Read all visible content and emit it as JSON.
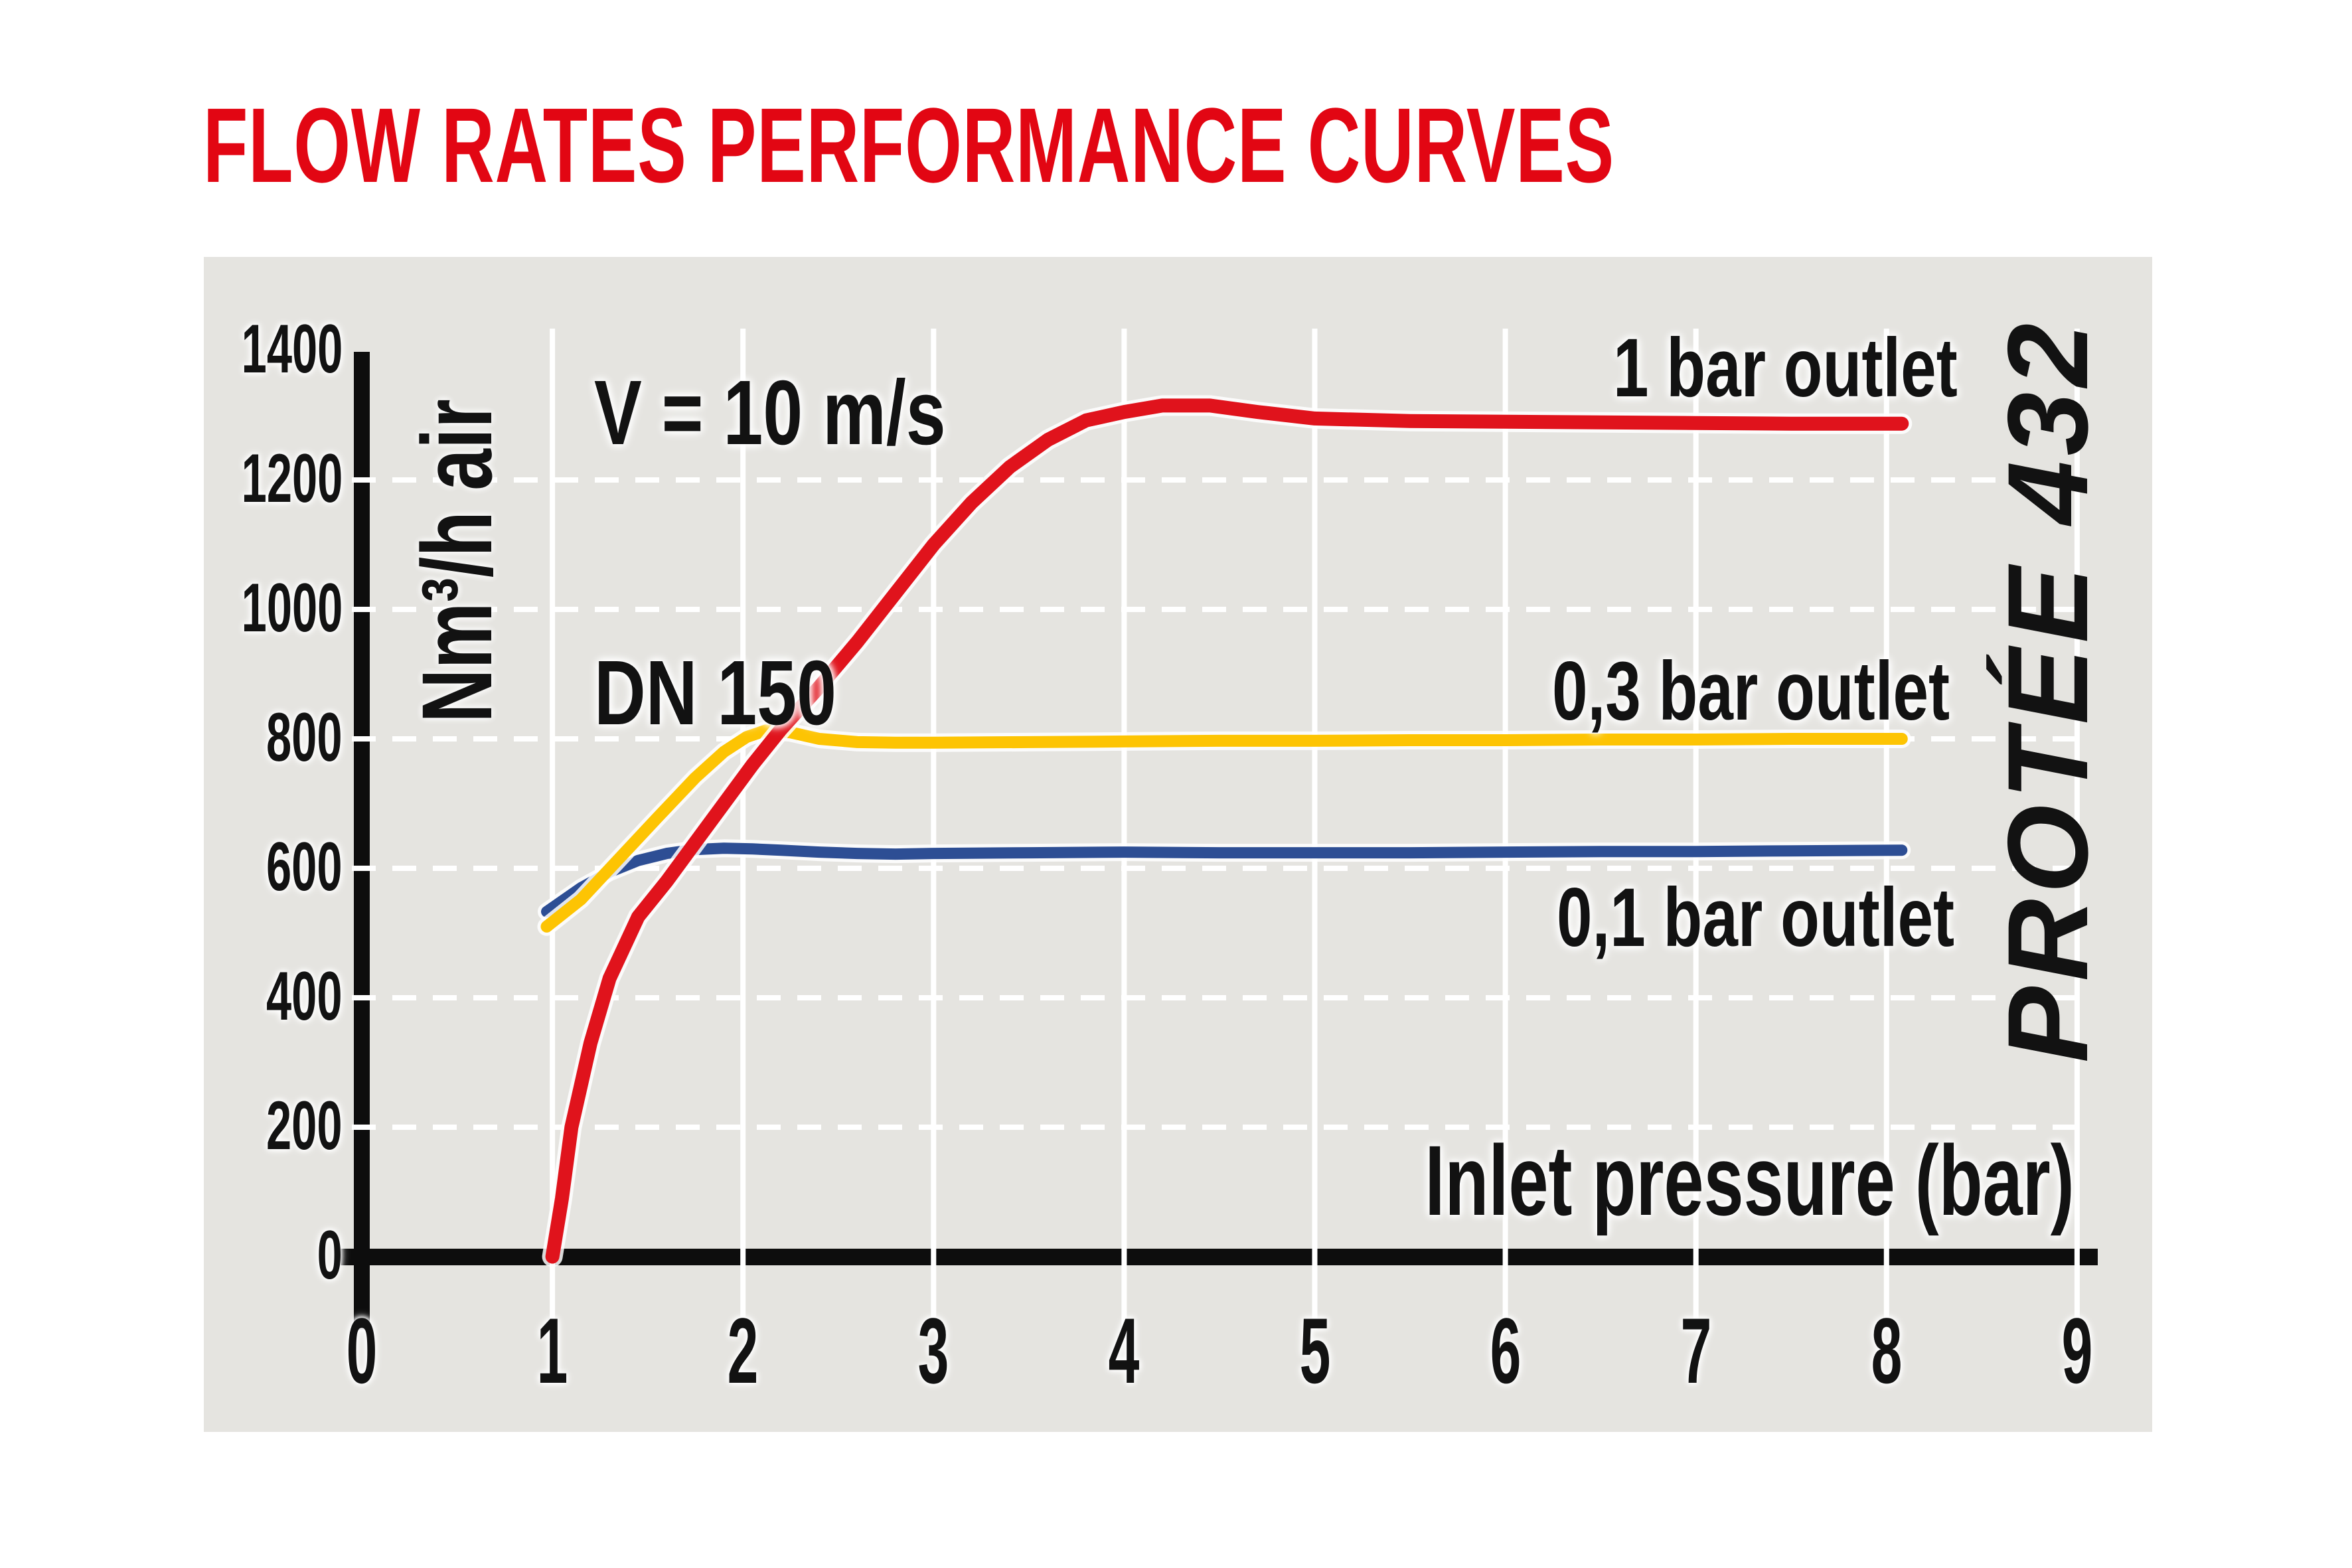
{
  "title": "FLOW RATES PERFORMANCE CURVES",
  "annotations": {
    "velocity": "V = 10 m/s",
    "diameter": "DN 150"
  },
  "side_label": "PROTÉE 432",
  "colors": {
    "title_red": "#e20613",
    "curve_red": "#e0131c",
    "curve_yellow": "#fdc403",
    "curve_blue": "#2d4e94",
    "panel_background": "#e5e4e0",
    "gridline": "#ffffff",
    "axis_black": "#0d0d0d",
    "text": "#121212"
  },
  "chart_data": {
    "type": "line",
    "title": "FLOW RATES PERFORMANCE CURVES",
    "xlabel": "Inlet pressure (bar)",
    "ylabel": "Nm³/h air",
    "xlim": [
      0,
      9
    ],
    "ylim": [
      0,
      1400
    ],
    "x_ticks": [
      0,
      1,
      2,
      3,
      4,
      5,
      6,
      7,
      8,
      9
    ],
    "y_ticks": [
      0,
      200,
      400,
      600,
      800,
      1000,
      1200,
      1400
    ],
    "grid": true,
    "grid_y_values": [
      200,
      400,
      600,
      800,
      1000,
      1200
    ],
    "legend_position": "labels-inline",
    "series": [
      {
        "name": "1 bar outlet",
        "color": "#e0131c",
        "points": [
          [
            1.0,
            0
          ],
          [
            1.05,
            90
          ],
          [
            1.1,
            200
          ],
          [
            1.2,
            330
          ],
          [
            1.3,
            430
          ],
          [
            1.45,
            525
          ],
          [
            1.6,
            580
          ],
          [
            1.75,
            640
          ],
          [
            1.9,
            700
          ],
          [
            2.05,
            760
          ],
          [
            2.2,
            815
          ],
          [
            2.4,
            880
          ],
          [
            2.6,
            950
          ],
          [
            2.8,
            1025
          ],
          [
            3.0,
            1100
          ],
          [
            3.2,
            1165
          ],
          [
            3.4,
            1220
          ],
          [
            3.6,
            1262
          ],
          [
            3.8,
            1292
          ],
          [
            4.0,
            1305
          ],
          [
            4.2,
            1315
          ],
          [
            4.45,
            1315
          ],
          [
            4.7,
            1305
          ],
          [
            5.0,
            1295
          ],
          [
            5.5,
            1291
          ],
          [
            6.0,
            1290
          ],
          [
            6.5,
            1289
          ],
          [
            7.0,
            1288
          ],
          [
            7.5,
            1287
          ],
          [
            8.08,
            1287
          ]
        ]
      },
      {
        "name": "0,3 bar outlet",
        "color": "#fdc403",
        "points": [
          [
            0.97,
            510
          ],
          [
            1.15,
            552
          ],
          [
            1.35,
            615
          ],
          [
            1.55,
            678
          ],
          [
            1.75,
            740
          ],
          [
            1.9,
            780
          ],
          [
            2.02,
            803
          ],
          [
            2.12,
            813
          ],
          [
            2.25,
            810
          ],
          [
            2.4,
            800
          ],
          [
            2.6,
            795
          ],
          [
            2.8,
            794
          ],
          [
            3.0,
            794
          ],
          [
            3.5,
            795
          ],
          [
            4.0,
            796
          ],
          [
            4.5,
            797
          ],
          [
            5.0,
            797
          ],
          [
            5.5,
            798
          ],
          [
            6.0,
            798
          ],
          [
            6.5,
            799
          ],
          [
            7.0,
            799
          ],
          [
            7.5,
            800
          ],
          [
            8.08,
            800
          ]
        ]
      },
      {
        "name": "0,1 bar outlet",
        "color": "#2d4e94",
        "points": [
          [
            0.97,
            533
          ],
          [
            1.15,
            570
          ],
          [
            1.3,
            594
          ],
          [
            1.45,
            612
          ],
          [
            1.6,
            623
          ],
          [
            1.75,
            629
          ],
          [
            1.9,
            631
          ],
          [
            2.05,
            630
          ],
          [
            2.2,
            628
          ],
          [
            2.4,
            625
          ],
          [
            2.6,
            623
          ],
          [
            2.8,
            622
          ],
          [
            3.0,
            623
          ],
          [
            3.5,
            624
          ],
          [
            4.0,
            625
          ],
          [
            4.5,
            624
          ],
          [
            5.0,
            624
          ],
          [
            5.5,
            624
          ],
          [
            6.0,
            625
          ],
          [
            6.5,
            626
          ],
          [
            7.0,
            626
          ],
          [
            7.5,
            627
          ],
          [
            8.08,
            628
          ]
        ]
      }
    ]
  }
}
